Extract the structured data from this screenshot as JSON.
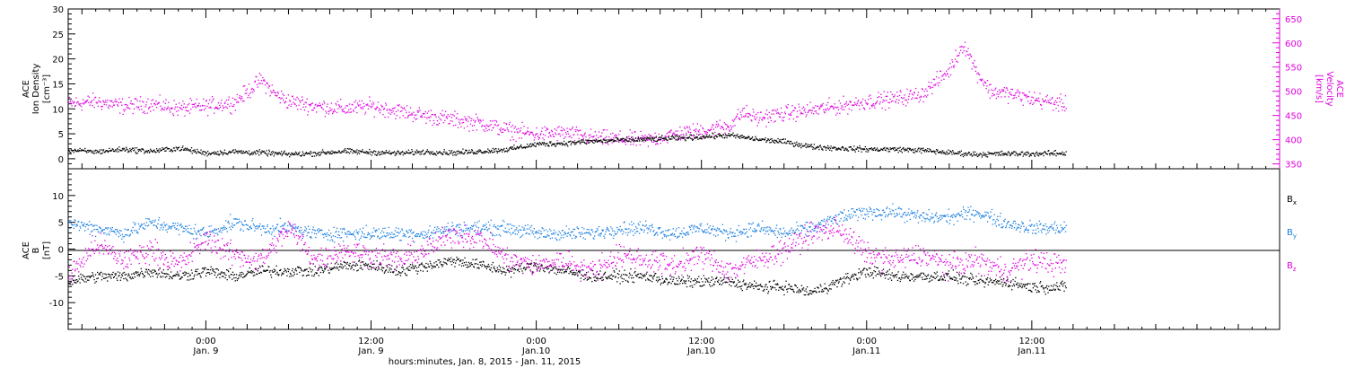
{
  "chart_data": {
    "type": "scatter",
    "x_axis": {
      "range_hours_from_jan8_00": [
        14,
        102
      ],
      "major_tick_labels": [
        {
          "time": "0:00",
          "day": "Jan. 9"
        },
        {
          "time": "12:00",
          "day": "Jan. 9"
        },
        {
          "time": "0:00",
          "day": "Jan.10"
        },
        {
          "time": "12:00",
          "day": "Jan.10"
        },
        {
          "time": "0:00",
          "day": "Jan.11"
        },
        {
          "time": "12:00",
          "day": "Jan.11"
        }
      ],
      "major_tick_hours": [
        24,
        36,
        48,
        60,
        72,
        84
      ],
      "caption": "hours:minutes, Jan.  8, 2015 - Jan. 11, 2015",
      "data_end_hour": 86.5
    },
    "panels": [
      {
        "name": "plasma",
        "left_label": [
          "ACE",
          "Ion Density",
          "[cm⁻³]"
        ],
        "right_label": [
          "ACE",
          "Velocity",
          "[km/s]"
        ],
        "left_ylim": [
          -2,
          30
        ],
        "left_ticks": [
          0,
          5,
          10,
          15,
          20,
          25,
          30
        ],
        "right_ylim": [
          340,
          670
        ],
        "right_ticks": [
          350,
          400,
          450,
          500,
          550,
          600,
          650
        ],
        "series": [
          {
            "axis": "left",
            "color": "#000000",
            "points": [
              [
                14,
                1.8
              ],
              [
                16,
                1.5
              ],
              [
                18,
                2.0
              ],
              [
                20,
                1.6
              ],
              [
                22,
                2.2
              ],
              [
                24,
                1.2
              ],
              [
                26,
                1.5
              ],
              [
                28,
                1.3
              ],
              [
                30,
                1.0
              ],
              [
                32,
                1.2
              ],
              [
                34,
                1.6
              ],
              [
                36,
                1.4
              ],
              [
                38,
                1.2
              ],
              [
                40,
                1.5
              ],
              [
                42,
                1.3
              ],
              [
                44,
                1.6
              ],
              [
                46,
                2.0
              ],
              [
                47,
                2.5
              ],
              [
                48,
                3.0
              ],
              [
                50,
                3.2
              ],
              [
                52,
                3.6
              ],
              [
                54,
                3.8
              ],
              [
                56,
                4.0
              ],
              [
                58,
                4.2
              ],
              [
                60,
                4.5
              ],
              [
                62,
                4.8
              ],
              [
                64,
                4.0
              ],
              [
                66,
                3.5
              ],
              [
                68,
                2.5
              ],
              [
                70,
                2.2
              ],
              [
                72,
                2.0
              ],
              [
                74,
                2.0
              ],
              [
                76,
                1.8
              ],
              [
                78,
                1.3
              ],
              [
                80,
                1.0
              ],
              [
                82,
                1.1
              ],
              [
                84,
                1.1
              ],
              [
                86.5,
                1.2
              ]
            ]
          },
          {
            "axis": "right",
            "color": "#e000e0",
            "points": [
              [
                14,
                475
              ],
              [
                16,
                480
              ],
              [
                18,
                470
              ],
              [
                20,
                475
              ],
              [
                22,
                465
              ],
              [
                24,
                470
              ],
              [
                26,
                478
              ],
              [
                27,
                500
              ],
              [
                28,
                525
              ],
              [
                29,
                495
              ],
              [
                30,
                480
              ],
              [
                32,
                470
              ],
              [
                34,
                465
              ],
              [
                36,
                470
              ],
              [
                38,
                460
              ],
              [
                40,
                450
              ],
              [
                42,
                442
              ],
              [
                44,
                435
              ],
              [
                46,
                420
              ],
              [
                48,
                412
              ],
              [
                50,
                415
              ],
              [
                52,
                405
              ],
              [
                54,
                402
              ],
              [
                56,
                400
              ],
              [
                58,
                412
              ],
              [
                60,
                420
              ],
              [
                62,
                430
              ],
              [
                63,
                458
              ],
              [
                64,
                445
              ],
              [
                66,
                455
              ],
              [
                68,
                462
              ],
              [
                70,
                470
              ],
              [
                72,
                480
              ],
              [
                74,
                485
              ],
              [
                76,
                495
              ],
              [
                77,
                520
              ],
              [
                78,
                545
              ],
              [
                79,
                600
              ],
              [
                80,
                540
              ],
              [
                81,
                500
              ],
              [
                82,
                498
              ],
              [
                84,
                485
              ],
              [
                86.5,
                473
              ]
            ]
          }
        ]
      },
      {
        "name": "magnetic",
        "left_label": [
          "ACE",
          "B",
          "[nT]"
        ],
        "ylim": [
          -15,
          15
        ],
        "ticks": [
          -10,
          -5,
          0,
          5,
          10
        ],
        "zero_line": true,
        "legend": [
          {
            "label": "B",
            "sub": "x",
            "color": "#000000"
          },
          {
            "label": "B",
            "sub": "y",
            "color": "#1a7fe0"
          },
          {
            "label": "B",
            "sub": "z",
            "color": "#e000e0"
          }
        ],
        "series": [
          {
            "label": "Bx",
            "color": "#000000",
            "points": [
              [
                14,
                -6
              ],
              [
                16,
                -5
              ],
              [
                18,
                -5
              ],
              [
                20,
                -4
              ],
              [
                22,
                -5
              ],
              [
                24,
                -4
              ],
              [
                26,
                -5
              ],
              [
                28,
                -4
              ],
              [
                30,
                -4
              ],
              [
                32,
                -4
              ],
              [
                34,
                -3
              ],
              [
                36,
                -3
              ],
              [
                38,
                -4
              ],
              [
                40,
                -3
              ],
              [
                42,
                -2
              ],
              [
                44,
                -3
              ],
              [
                46,
                -4
              ],
              [
                48,
                -3
              ],
              [
                50,
                -4
              ],
              [
                52,
                -5
              ],
              [
                54,
                -5
              ],
              [
                56,
                -5
              ],
              [
                58,
                -6
              ],
              [
                60,
                -6
              ],
              [
                62,
                -6
              ],
              [
                64,
                -7
              ],
              [
                66,
                -7
              ],
              [
                68,
                -8
              ],
              [
                70,
                -6
              ],
              [
                72,
                -4
              ],
              [
                74,
                -5
              ],
              [
                76,
                -5
              ],
              [
                78,
                -5
              ],
              [
                80,
                -6
              ],
              [
                82,
                -6
              ],
              [
                84,
                -7
              ],
              [
                86.5,
                -7
              ]
            ]
          },
          {
            "label": "By",
            "color": "#1a7fe0",
            "points": [
              [
                14,
                5
              ],
              [
                16,
                4
              ],
              [
                18,
                3
              ],
              [
                20,
                5
              ],
              [
                22,
                4
              ],
              [
                24,
                3
              ],
              [
                26,
                5
              ],
              [
                28,
                4
              ],
              [
                30,
                4
              ],
              [
                32,
                3
              ],
              [
                34,
                3
              ],
              [
                36,
                3
              ],
              [
                38,
                3
              ],
              [
                40,
                3
              ],
              [
                42,
                4
              ],
              [
                44,
                4
              ],
              [
                46,
                4
              ],
              [
                48,
                3
              ],
              [
                50,
                3
              ],
              [
                52,
                3
              ],
              [
                54,
                4
              ],
              [
                56,
                4
              ],
              [
                58,
                3
              ],
              [
                60,
                4
              ],
              [
                62,
                3
              ],
              [
                64,
                4
              ],
              [
                66,
                3
              ],
              [
                68,
                4
              ],
              [
                70,
                6
              ],
              [
                72,
                7
              ],
              [
                74,
                7
              ],
              [
                76,
                6
              ],
              [
                78,
                6
              ],
              [
                80,
                7
              ],
              [
                82,
                5
              ],
              [
                84,
                4
              ],
              [
                86.5,
                4
              ]
            ]
          },
          {
            "label": "Bz",
            "color": "#e000e0",
            "points": [
              [
                14,
                -5
              ],
              [
                16,
                1
              ],
              [
                18,
                -2
              ],
              [
                20,
                0
              ],
              [
                22,
                -3
              ],
              [
                24,
                2
              ],
              [
                26,
                -1
              ],
              [
                28,
                -2
              ],
              [
                30,
                4
              ],
              [
                32,
                -2
              ],
              [
                34,
                0
              ],
              [
                36,
                -1
              ],
              [
                38,
                -2
              ],
              [
                40,
                0
              ],
              [
                42,
                3
              ],
              [
                44,
                2
              ],
              [
                46,
                -2
              ],
              [
                48,
                -3
              ],
              [
                50,
                -2
              ],
              [
                52,
                -4
              ],
              [
                54,
                -1
              ],
              [
                56,
                -2
              ],
              [
                58,
                -3
              ],
              [
                60,
                -1
              ],
              [
                62,
                -4
              ],
              [
                64,
                -2
              ],
              [
                66,
                0
              ],
              [
                68,
                3
              ],
              [
                70,
                4
              ],
              [
                72,
                -1
              ],
              [
                74,
                -2
              ],
              [
                76,
                -1
              ],
              [
                78,
                -3
              ],
              [
                80,
                -2
              ],
              [
                82,
                -4
              ],
              [
                84,
                -2
              ],
              [
                86.5,
                -3
              ]
            ]
          }
        ]
      }
    ]
  }
}
